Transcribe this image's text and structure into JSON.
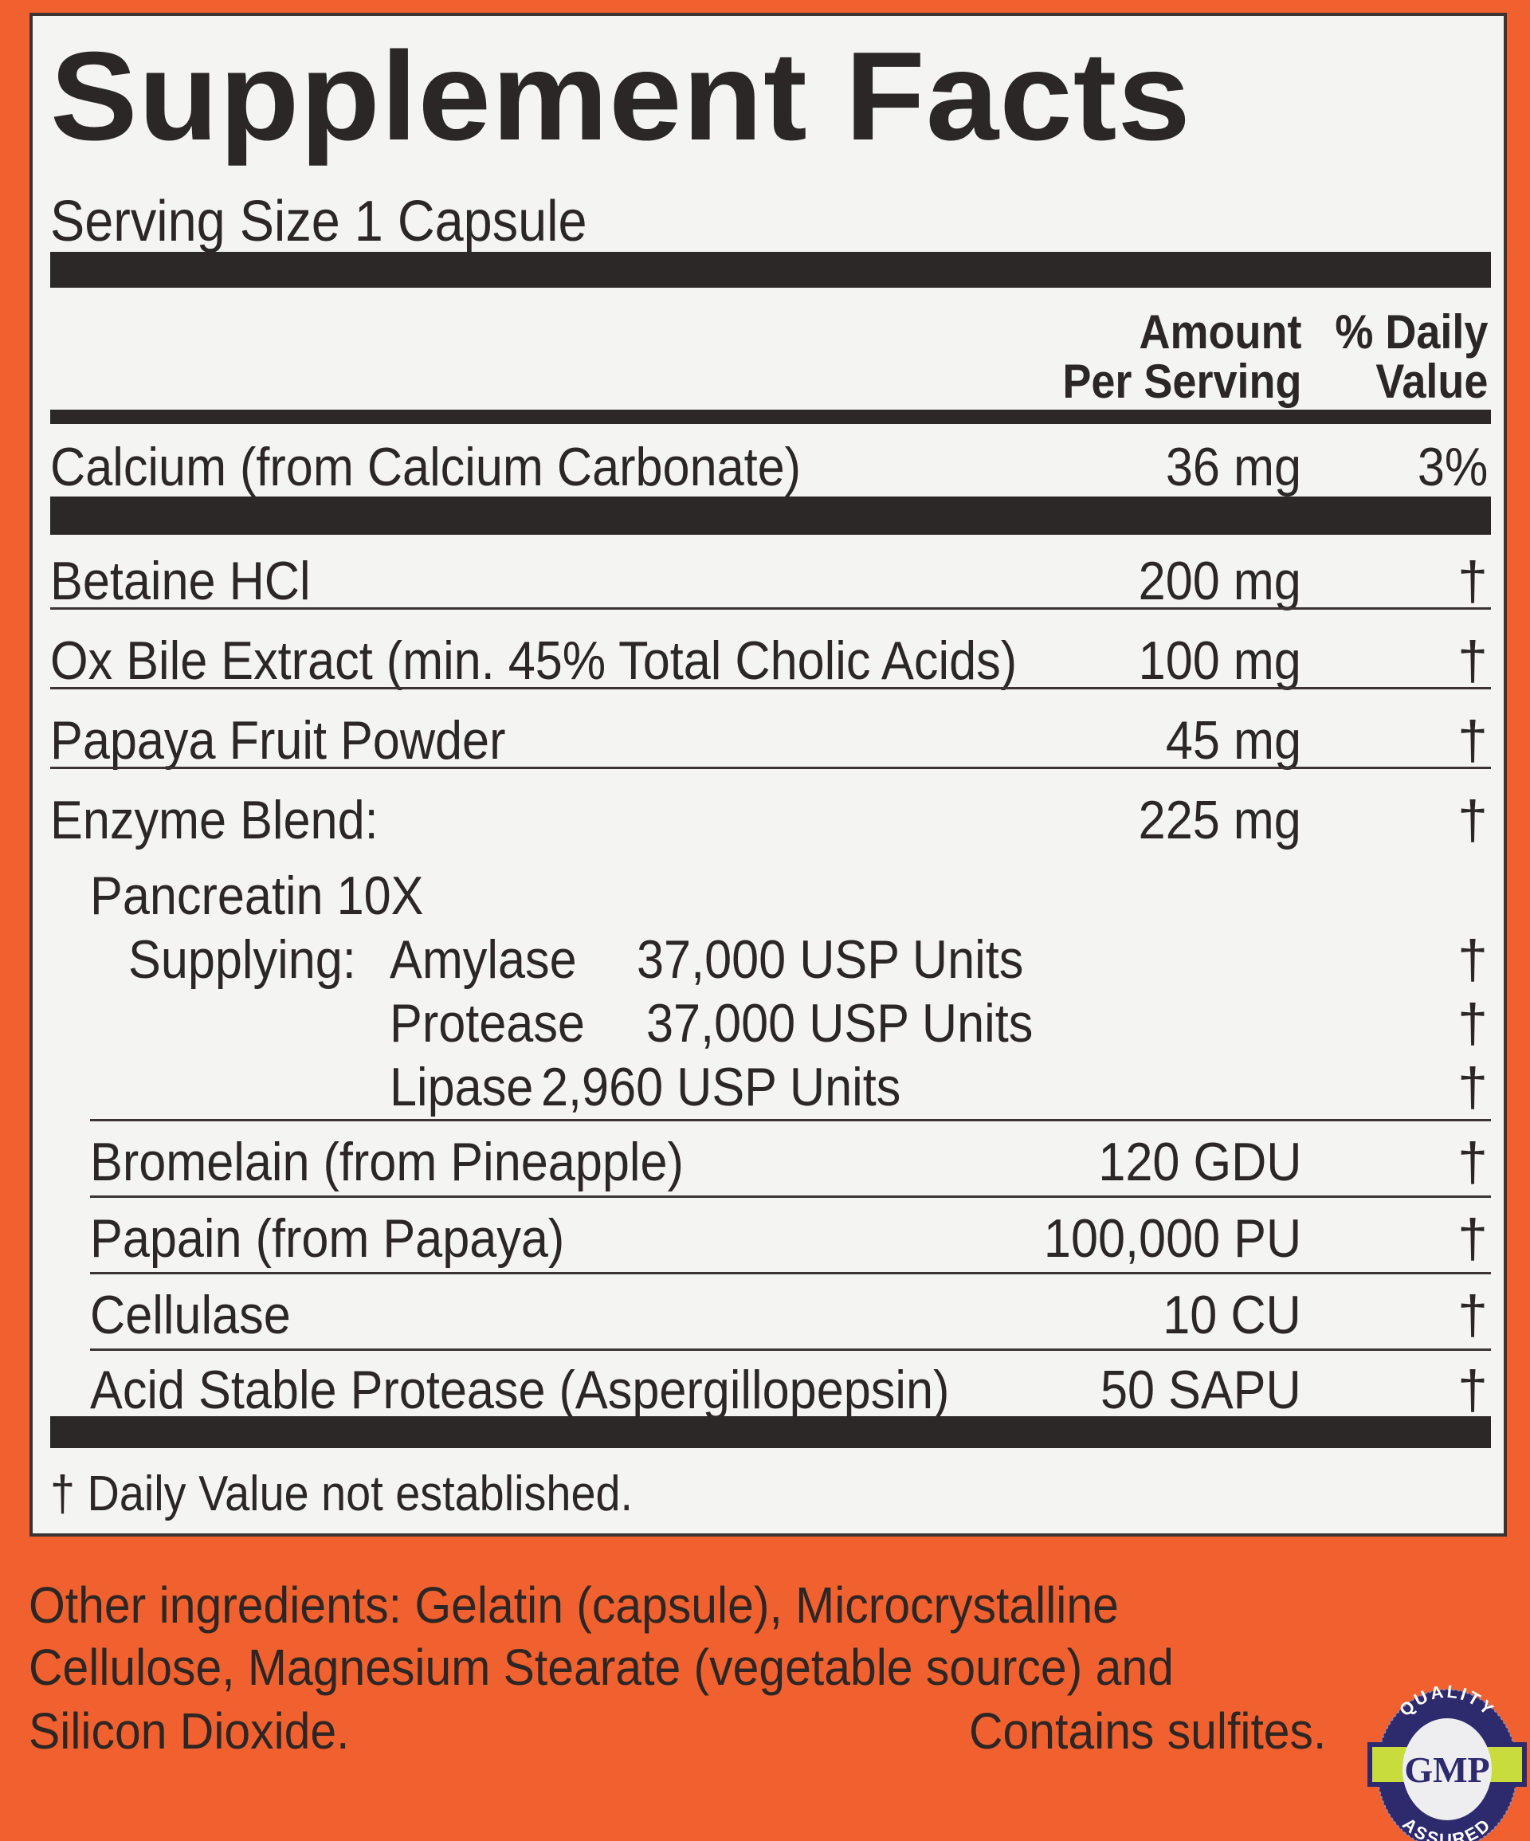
{
  "title": "Supplement Facts",
  "serving_size": "Serving Size 1 Capsule",
  "headers": {
    "amount_line1": "Amount",
    "amount_line2": "Per Serving",
    "dv_line1": "% Daily",
    "dv_line2": "Value"
  },
  "calcium": {
    "name": "Calcium (from Calcium Carbonate)",
    "amount": "36 mg",
    "dv": "3%"
  },
  "rows": [
    {
      "name": "Betaine HCl",
      "amount": "200 mg",
      "dv": "†"
    },
    {
      "name": "Ox Bile Extract (min. 45% Total Cholic Acids)",
      "amount": "100 mg",
      "dv": "†"
    },
    {
      "name": "Papaya Fruit Powder",
      "amount": "45 mg",
      "dv": "†"
    },
    {
      "name": "Enzyme Blend:",
      "amount": "225 mg",
      "dv": "†"
    }
  ],
  "pancreatin": {
    "name": "Pancreatin 10X",
    "supplying_label": "Supplying:",
    "items": [
      {
        "name": "Amylase",
        "units": "37,000 USP Units",
        "dv": "†"
      },
      {
        "name": "Protease",
        "units": "37,000 USP Units",
        "dv": "†"
      },
      {
        "name": "Lipase",
        "units": "2,960 USP Units",
        "dv": "†"
      }
    ]
  },
  "sub_rows": [
    {
      "name": "Bromelain (from Pineapple)",
      "amount": "120 GDU",
      "dv": "†"
    },
    {
      "name": "Papain (from Papaya)",
      "amount": "100,000 PU",
      "dv": "†"
    },
    {
      "name": "Cellulase",
      "amount": "10 CU",
      "dv": "†"
    },
    {
      "name": "Acid Stable Protease (Aspergillopepsin)",
      "amount": "50 SAPU",
      "dv": "†"
    }
  ],
  "footnote": "† Daily Value not established.",
  "other_ingredients": {
    "line1": "Other ingredients: Gelatin (capsule), Microcrystalline",
    "line2": "Cellulose, Magnesium Stearate (vegetable source) and",
    "line3": "Silicon Dioxide.",
    "sulfites": "Contains sulfites."
  },
  "badge": {
    "top": "QUALITY",
    "center": "GMP",
    "bottom": "ASSURED"
  },
  "colors": {
    "background": "#f0612f",
    "panel": "#f4f4f3",
    "text": "#2b2727",
    "badge_navy": "#2e2a6e",
    "badge_green": "#c8dc3c"
  }
}
